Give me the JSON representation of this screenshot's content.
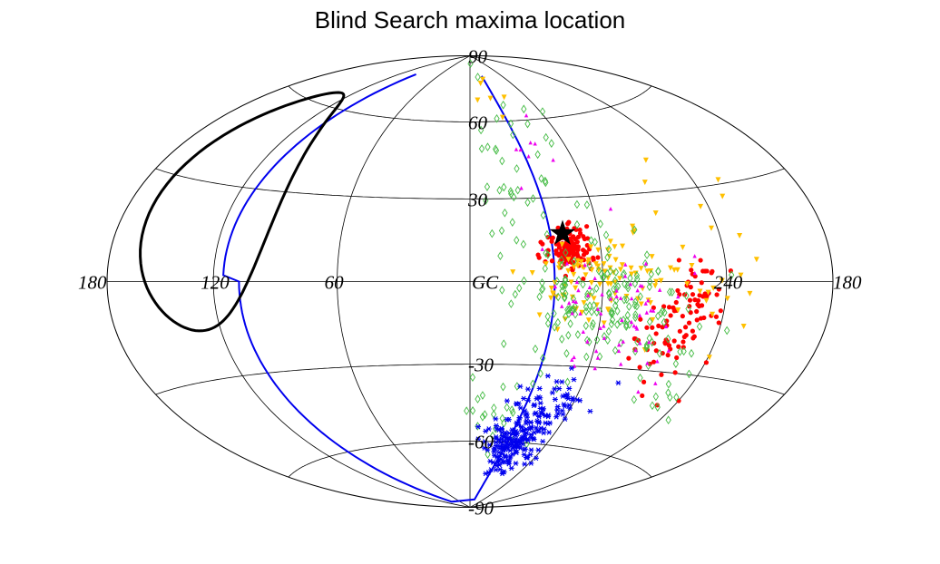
{
  "chart_data": {
    "type": "scatter",
    "projection": "aitoff-hammer",
    "title": "Blind Search maxima location",
    "lon_tick_labels": [
      "180",
      "120",
      "60",
      "GC",
      "240",
      "180"
    ],
    "lat_tick_labels": [
      "90",
      "60",
      "30",
      "-30",
      "-60",
      "-90"
    ],
    "lon_tick_values": [
      180,
      120,
      60,
      0,
      -120,
      -180
    ],
    "lat_tick_values": [
      90,
      60,
      30,
      -30,
      -60,
      -90
    ],
    "grid": true,
    "series": [
      {
        "marker": "circle",
        "color": "#ff0000",
        "clusters": [
          {
            "lon": -45,
            "lat": 12,
            "spread_lon": 5,
            "spread_lat": 4,
            "count": 130
          },
          {
            "lon": -105,
            "lat": -10,
            "spread_lon": 8,
            "spread_lat": 10,
            "count": 70
          },
          {
            "lon": -90,
            "lat": -20,
            "spread_lon": 8,
            "spread_lat": 6,
            "count": 30
          }
        ]
      },
      {
        "marker": "triangle-down",
        "color": "#ffc000",
        "clusters": [
          {
            "lon": -60,
            "lat": 0,
            "spread_lon": 15,
            "spread_lat": 8,
            "count": 90
          },
          {
            "lon": -110,
            "lat": 5,
            "spread_lon": 15,
            "spread_lat": 15,
            "count": 30
          },
          {
            "lon": -20,
            "lat": 60,
            "spread_lon": 25,
            "spread_lat": 10,
            "count": 6
          }
        ]
      },
      {
        "marker": "diamond-open",
        "color": "#44bb44",
        "clusters": [
          {
            "lon": -60,
            "lat": -5,
            "spread_lon": 18,
            "spread_lat": 10,
            "count": 150
          },
          {
            "lon": -30,
            "lat": 40,
            "spread_lon": 15,
            "spread_lat": 18,
            "count": 45
          },
          {
            "lon": -20,
            "lat": -45,
            "spread_lon": 10,
            "spread_lat": 10,
            "count": 25
          },
          {
            "lon": -95,
            "lat": -25,
            "spread_lon": 15,
            "spread_lat": 10,
            "count": 30
          }
        ]
      },
      {
        "marker": "triangle-up",
        "color": "#ee00ee",
        "clusters": [
          {
            "lon": -70,
            "lat": -10,
            "spread_lon": 20,
            "spread_lat": 12,
            "count": 70
          },
          {
            "lon": -40,
            "lat": 45,
            "spread_lon": 15,
            "spread_lat": 10,
            "count": 8
          }
        ]
      },
      {
        "marker": "asterisk",
        "color": "#0000ee",
        "clusters": [
          {
            "lon": -35,
            "lat": -60,
            "spread_lon": 10,
            "spread_lat": 7,
            "count": 180
          },
          {
            "lon": -45,
            "lat": -45,
            "spread_lon": 12,
            "spread_lat": 7,
            "count": 60
          }
        ]
      },
      {
        "marker": "star",
        "color": "#000000",
        "points": [
          {
            "lon": -43,
            "lat": 17
          }
        ]
      }
    ],
    "curves": [
      {
        "name": "",
        "color": "#0000ee",
        "style": "blue-boundary"
      },
      {
        "name": "",
        "color": "#000000",
        "style": "black-loop"
      }
    ]
  }
}
